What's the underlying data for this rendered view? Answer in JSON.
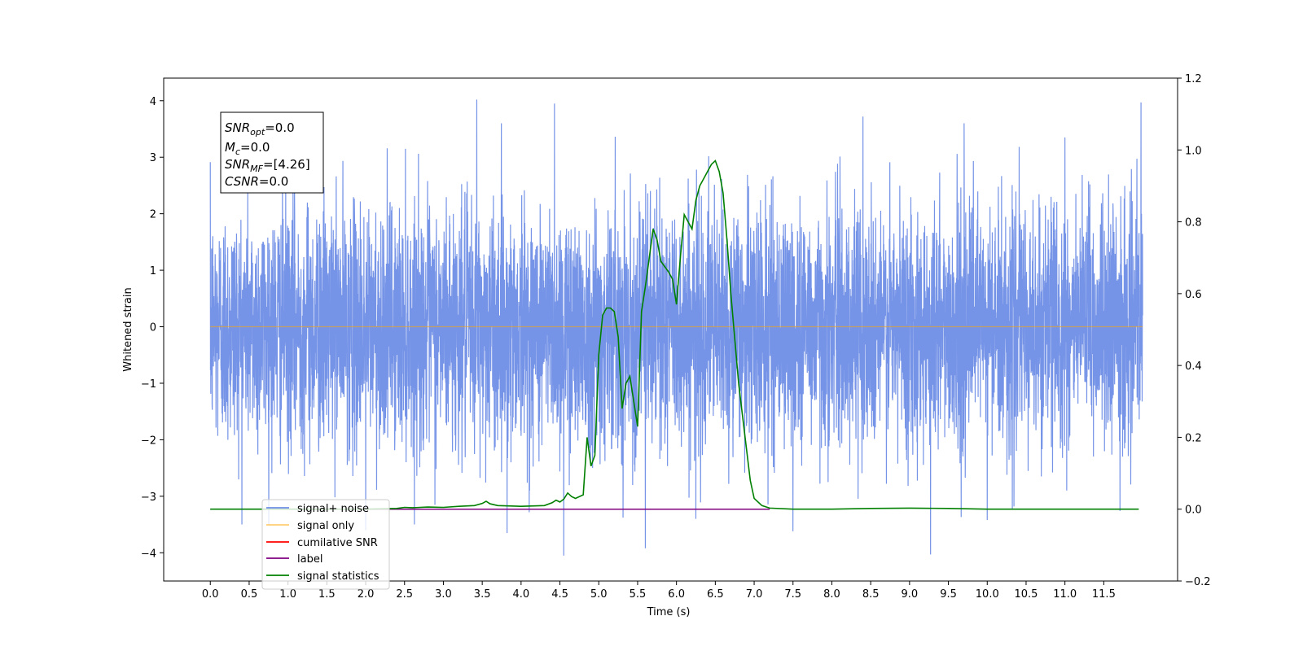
{
  "chart_data": {
    "type": "line",
    "xlabel": "Time (s)",
    "ylabel": "Whitened strain",
    "xlim": [
      -0.6,
      12.45
    ],
    "ylim": [
      -4.5,
      4.4
    ],
    "y2lim": [
      -0.2,
      1.2
    ],
    "x_ticks": [
      "0.0",
      "0.5",
      "1.0",
      "1.5",
      "2.0",
      "2.5",
      "3.0",
      "3.5",
      "4.0",
      "4.5",
      "5.0",
      "5.5",
      "6.0",
      "6.5",
      "7.0",
      "7.5",
      "8.0",
      "8.5",
      "9.0",
      "9.5",
      "10.0",
      "10.5",
      "11.0",
      "11.5"
    ],
    "y_ticks": [
      "−4",
      "−3",
      "−2",
      "−1",
      "0",
      "1",
      "2",
      "3",
      "4"
    ],
    "y2_ticks": [
      "−0.2",
      "0.0",
      "0.2",
      "0.4",
      "0.6",
      "0.8",
      "1.0",
      "1.2"
    ],
    "noise": {
      "x_range": [
        0.0,
        12.0
      ],
      "std": 1.05,
      "spikes": [
        {
          "x": 3.43,
          "y": 4.02
        },
        {
          "x": 4.43,
          "y": 3.95
        },
        {
          "x": 11.98,
          "y": 3.97
        },
        {
          "x": 4.55,
          "y": -4.05
        },
        {
          "x": 9.27,
          "y": -4.03
        },
        {
          "x": 5.6,
          "y": -3.92
        },
        {
          "x": 3.82,
          "y": -3.65
        },
        {
          "x": 8.4,
          "y": 3.72
        },
        {
          "x": 10.0,
          "y": -3.42
        },
        {
          "x": 7.5,
          "y": -3.62
        },
        {
          "x": 6.25,
          "y": -3.4
        },
        {
          "x": 2.0,
          "y": -3.6
        },
        {
          "x": 11.0,
          "y": 3.35
        }
      ]
    },
    "series": [
      {
        "name": "signal+ noise",
        "color": "#6f8ee6",
        "axis": "left",
        "style": "noise"
      },
      {
        "name": "signal only",
        "color": "#ffa500",
        "axis": "left",
        "x": [
          0.0,
          12.0
        ],
        "y": [
          0.0,
          0.0
        ]
      },
      {
        "name": "cumilative SNR",
        "color": "#ff0000",
        "axis": "left",
        "x": [],
        "y": []
      },
      {
        "name": "label",
        "color": "#800080",
        "axis": "right",
        "x": [
          0.0,
          7.2
        ],
        "y": [
          0.0,
          0.0
        ]
      },
      {
        "name": "signal statistics",
        "color": "#008000",
        "axis": "right",
        "x": [
          0.0,
          1.0,
          2.0,
          2.4,
          2.5,
          2.6,
          2.7,
          2.8,
          3.0,
          3.2,
          3.4,
          3.5,
          3.55,
          3.6,
          3.7,
          4.0,
          4.3,
          4.4,
          4.45,
          4.5,
          4.55,
          4.6,
          4.65,
          4.7,
          4.8,
          4.85,
          4.9,
          4.95,
          5.0,
          5.05,
          5.1,
          5.15,
          5.2,
          5.25,
          5.3,
          5.35,
          5.4,
          5.45,
          5.5,
          5.55,
          5.6,
          5.65,
          5.7,
          5.75,
          5.8,
          5.9,
          5.95,
          6.0,
          6.05,
          6.1,
          6.15,
          6.2,
          6.25,
          6.3,
          6.35,
          6.4,
          6.45,
          6.5,
          6.55,
          6.6,
          6.65,
          6.7,
          6.8,
          6.9,
          6.95,
          7.0,
          7.1,
          7.2,
          7.5,
          8.0,
          8.5,
          9.0,
          9.5,
          10.0,
          11.0,
          11.95
        ],
        "y": [
          0.0,
          0.0,
          0.0,
          0.002,
          0.005,
          0.004,
          0.005,
          0.006,
          0.005,
          0.008,
          0.01,
          0.016,
          0.022,
          0.015,
          0.01,
          0.008,
          0.01,
          0.018,
          0.025,
          0.02,
          0.028,
          0.045,
          0.035,
          0.03,
          0.04,
          0.2,
          0.12,
          0.15,
          0.43,
          0.54,
          0.56,
          0.56,
          0.55,
          0.48,
          0.28,
          0.35,
          0.37,
          0.3,
          0.23,
          0.55,
          0.62,
          0.7,
          0.78,
          0.75,
          0.69,
          0.66,
          0.64,
          0.57,
          0.7,
          0.82,
          0.8,
          0.78,
          0.86,
          0.9,
          0.92,
          0.94,
          0.96,
          0.97,
          0.94,
          0.88,
          0.75,
          0.6,
          0.35,
          0.17,
          0.08,
          0.03,
          0.01,
          0.003,
          0.0,
          0.0,
          0.002,
          0.003,
          0.002,
          0.0,
          0.0,
          0.0
        ]
      }
    ],
    "legend": {
      "placement": "lower-left",
      "entries": [
        {
          "label": "signal+ noise",
          "color": "#6f8ee6"
        },
        {
          "label": "signal only",
          "color": "#ffa500"
        },
        {
          "label": "cumilative SNR",
          "color": "#ff0000"
        },
        {
          "label": "label",
          "color": "#800080"
        },
        {
          "label": "signal statistics",
          "color": "#008000"
        }
      ]
    },
    "annotation": {
      "snr_opt_base": "SNR",
      "snr_opt_sub": "opt",
      "snr_opt_value": "=0.0",
      "mc_base": "M",
      "mc_sub": "c",
      "mc_value": "=0.0",
      "snr_mf_base": "SNR",
      "snr_mf_sub": "MF",
      "snr_mf_value": "=[4.26]",
      "csnr_base": "CSNR",
      "csnr_value": "=0.0"
    },
    "grid": false
  }
}
